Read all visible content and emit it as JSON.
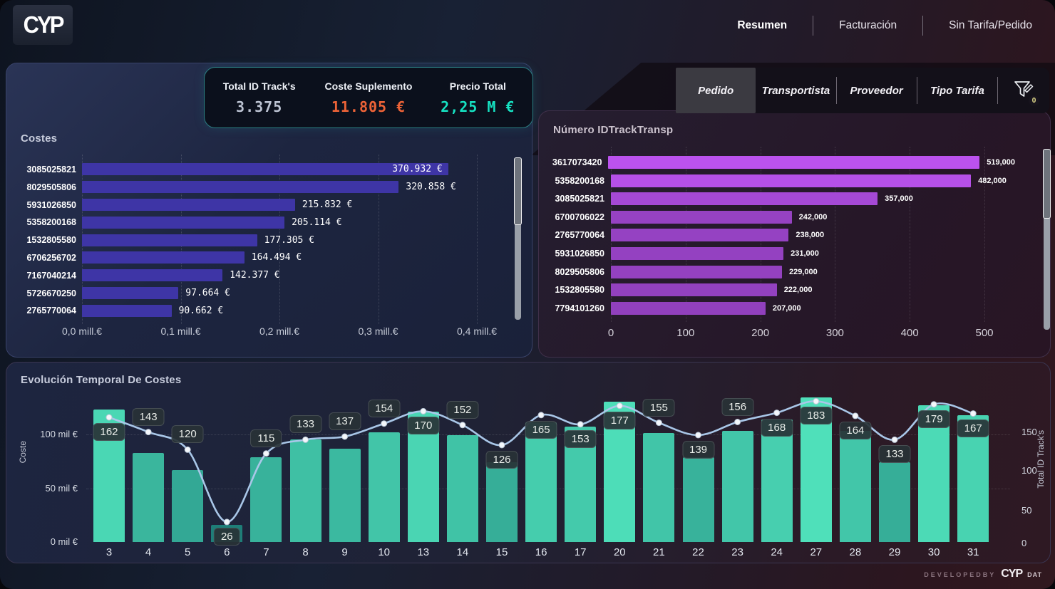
{
  "header": {
    "logo_text": "CYP",
    "nav": [
      {
        "label": "Resumen",
        "active": true
      },
      {
        "label": "Facturación",
        "active": false
      },
      {
        "label": "Sin Tarifa/Pedido",
        "active": false
      }
    ]
  },
  "kpis": [
    {
      "label": "Total ID Track's",
      "value": "3.375",
      "color": "#bcc3d2"
    },
    {
      "label": "Coste Suplemento",
      "value": "11.805 €",
      "color": "#ed6337"
    },
    {
      "label": "Precio Total",
      "value": "2,25 M €",
      "color": "#16e2c2"
    }
  ],
  "filters": {
    "buttons": [
      {
        "label": "Pedido",
        "active": true
      },
      {
        "label": "Transportista",
        "active": false
      },
      {
        "label": "Proveedor",
        "active": false
      },
      {
        "label": "Tipo Tarifa",
        "active": false
      }
    ],
    "badge_count": "0"
  },
  "chart_data": [
    {
      "id": "costes",
      "type": "bar",
      "orientation": "horizontal",
      "title": "Costes",
      "categories": [
        "3085025821",
        "8029505806",
        "5931026850",
        "5358200168",
        "1532805580",
        "6706256702",
        "7167040214",
        "5726670250",
        "2765770064"
      ],
      "values": [
        370932,
        320858,
        215832,
        205114,
        177305,
        164494,
        142377,
        97664,
        90662
      ],
      "value_labels": [
        "370.932 €",
        "320.858 €",
        "215.832 €",
        "205.114 €",
        "177.305 €",
        "164.494 €",
        "142.377 €",
        "97.664 €",
        "90.662 €"
      ],
      "x_ticks": [
        "0,0 mill.€",
        "0,1 mill.€",
        "0,2 mill.€",
        "0,3 mill.€",
        "0,4 mill.€"
      ],
      "xlim": [
        0,
        423000
      ],
      "bar_color": "#3e35a6",
      "has_scrollbar": true
    },
    {
      "id": "idtrack",
      "type": "bar",
      "orientation": "horizontal",
      "title": "Número IDTrackTransp",
      "categories": [
        "3617073420",
        "5358200168",
        "3085025821",
        "6700706022",
        "2765770064",
        "5931026850",
        "8029505806",
        "1532805580",
        "7794101260"
      ],
      "values": [
        519,
        482,
        357,
        242,
        238,
        231,
        229,
        222,
        207
      ],
      "value_labels": [
        "519,000",
        "482,000",
        "357,000",
        "242,000",
        "238,000",
        "231,000",
        "229,000",
        "222,000",
        "207,000"
      ],
      "x_ticks": [
        "0",
        "100",
        "200",
        "300",
        "400",
        "500"
      ],
      "xlim": [
        0,
        560
      ],
      "bar_color_low": "#9140bd",
      "bar_color_high": "#bb52ee",
      "has_scrollbar": true
    },
    {
      "id": "evolucion",
      "type": "combo-bar-line",
      "title": "Evolución Temporal De Costes",
      "categories": [
        "3",
        "4",
        "5",
        "6",
        "7",
        "8",
        "9",
        "10",
        "13",
        "14",
        "15",
        "16",
        "17",
        "20",
        "21",
        "22",
        "23",
        "24",
        "27",
        "28",
        "29",
        "30",
        "31"
      ],
      "bar_series": {
        "name": "Coste",
        "unit": "mil €",
        "values": [
          123,
          83,
          67,
          16,
          79,
          95,
          87,
          102,
          121,
          99,
          74,
          111,
          107,
          130,
          101,
          79,
          103,
          114,
          134,
          103,
          74,
          127,
          118
        ],
        "color_low": "#1e7e78",
        "color_high": "#4fe0ba",
        "value_min": 16,
        "value_max": 134
      },
      "line_series": {
        "name": "Total ID Track's",
        "values": [
          162,
          143,
          120,
          26,
          115,
          133,
          137,
          154,
          170,
          152,
          126,
          165,
          153,
          177,
          155,
          139,
          156,
          168,
          183,
          164,
          133,
          179,
          167
        ],
        "label_pos": [
          "below",
          "above",
          "above",
          "below",
          "above",
          "above",
          "above",
          "above",
          "below",
          "above",
          "below",
          "below",
          "below",
          "below",
          "above",
          "below",
          "above",
          "below",
          "below",
          "below",
          "below",
          "below",
          "below"
        ],
        "color": "#a9c7e8",
        "dot_color": "#f4f7fb"
      },
      "y_left": {
        "label": "Coste",
        "ticks": [
          "0 mil €",
          "50 mil €",
          "100 mil €"
        ],
        "lim": [
          0,
          167
        ]
      },
      "y_right": {
        "label": "Total ID Track's",
        "ticks": [
          "0",
          "50",
          "100",
          "150"
        ],
        "lim": [
          0,
          232
        ]
      },
      "grid": "dotted-horizontal"
    }
  ],
  "footer": {
    "developed_by": "DEVELOPEDBY",
    "brand": "CYP",
    "brand_suffix": "DAT"
  }
}
